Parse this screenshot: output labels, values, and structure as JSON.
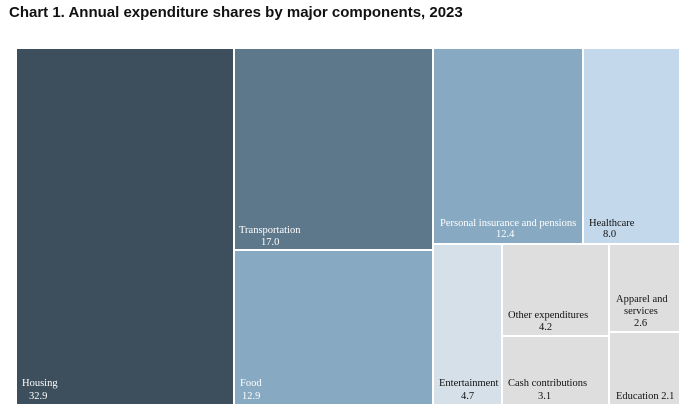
{
  "title": "Chart 1. Annual expenditure shares by major components, 2023",
  "chart_data": {
    "type": "treemap",
    "title": "Chart 1. Annual expenditure shares by major components, 2023",
    "items": [
      {
        "label": "Housing",
        "value": 32.9,
        "value_text": "32.9",
        "color": "#3d4f5c"
      },
      {
        "label": "Transportation",
        "value": 17.0,
        "value_text": "17.0",
        "color": "#5e788b"
      },
      {
        "label": "Food",
        "value": 12.9,
        "value_text": "12.9",
        "color": "#87a9c2"
      },
      {
        "label": "Personal insurance and pensions",
        "value": 12.4,
        "value_text": "12.4",
        "color": "#87a9c2"
      },
      {
        "label": "Healthcare",
        "value": 8.0,
        "value_text": "8.0",
        "color": "#c3d8eb"
      },
      {
        "label": "Entertainment",
        "value": 4.7,
        "value_text": "4.7",
        "color": "#d5e0e8"
      },
      {
        "label": "Other expenditures",
        "value": 4.2,
        "value_text": "4.2",
        "color": "#dedede"
      },
      {
        "label": "Cash contributions",
        "value": 3.1,
        "value_text": "3.1",
        "color": "#dedede"
      },
      {
        "label": "Apparel and services",
        "value": 2.6,
        "value_text": "2.6",
        "color": "#dedede"
      },
      {
        "label": "Education",
        "value": 2.1,
        "value_text": "2.1",
        "color": "#dedede"
      }
    ]
  }
}
